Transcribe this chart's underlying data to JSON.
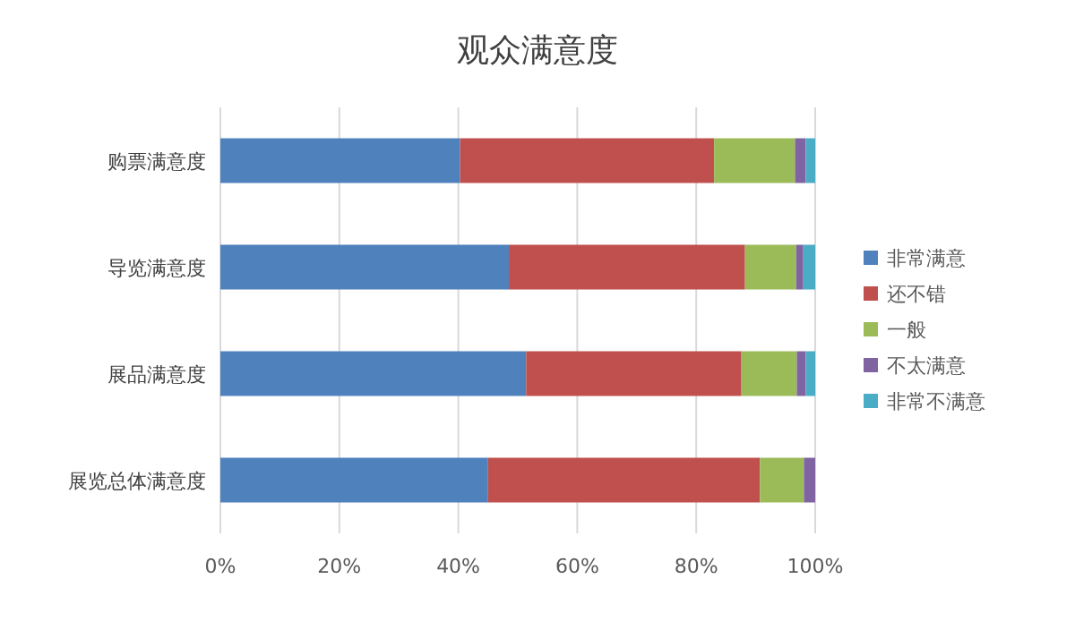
{
  "chart_data": {
    "type": "bar",
    "orientation": "horizontal",
    "stacked": true,
    "title": "观众满意度",
    "categories": [
      "购票满意度",
      "导览满意度",
      "展品满意度",
      "展览总体满意度"
    ],
    "series": [
      {
        "name": "非常满意",
        "color": "#4f81bd",
        "values": [
          40.3,
          48.5,
          51.4,
          45.0
        ]
      },
      {
        "name": "还不错",
        "color": "#c0504d",
        "values": [
          42.7,
          39.7,
          36.2,
          45.7
        ]
      },
      {
        "name": "一般",
        "color": "#9bbb59",
        "values": [
          13.6,
          8.6,
          9.3,
          7.4
        ]
      },
      {
        "name": "不太满意",
        "color": "#8064a2",
        "values": [
          1.8,
          1.2,
          1.5,
          1.9
        ]
      },
      {
        "name": "非常不满意",
        "color": "#4bacc6",
        "values": [
          1.6,
          2.0,
          1.6,
          0
        ]
      }
    ],
    "xlim": [
      0,
      100
    ],
    "xticks": [
      {
        "value": 0,
        "label": "0%"
      },
      {
        "value": 20,
        "label": "20%"
      },
      {
        "value": 40,
        "label": "40%"
      },
      {
        "value": 60,
        "label": "60%"
      },
      {
        "value": 80,
        "label": "80%"
      },
      {
        "value": 100,
        "label": "100%"
      }
    ],
    "grid": "x",
    "legend": "right"
  }
}
